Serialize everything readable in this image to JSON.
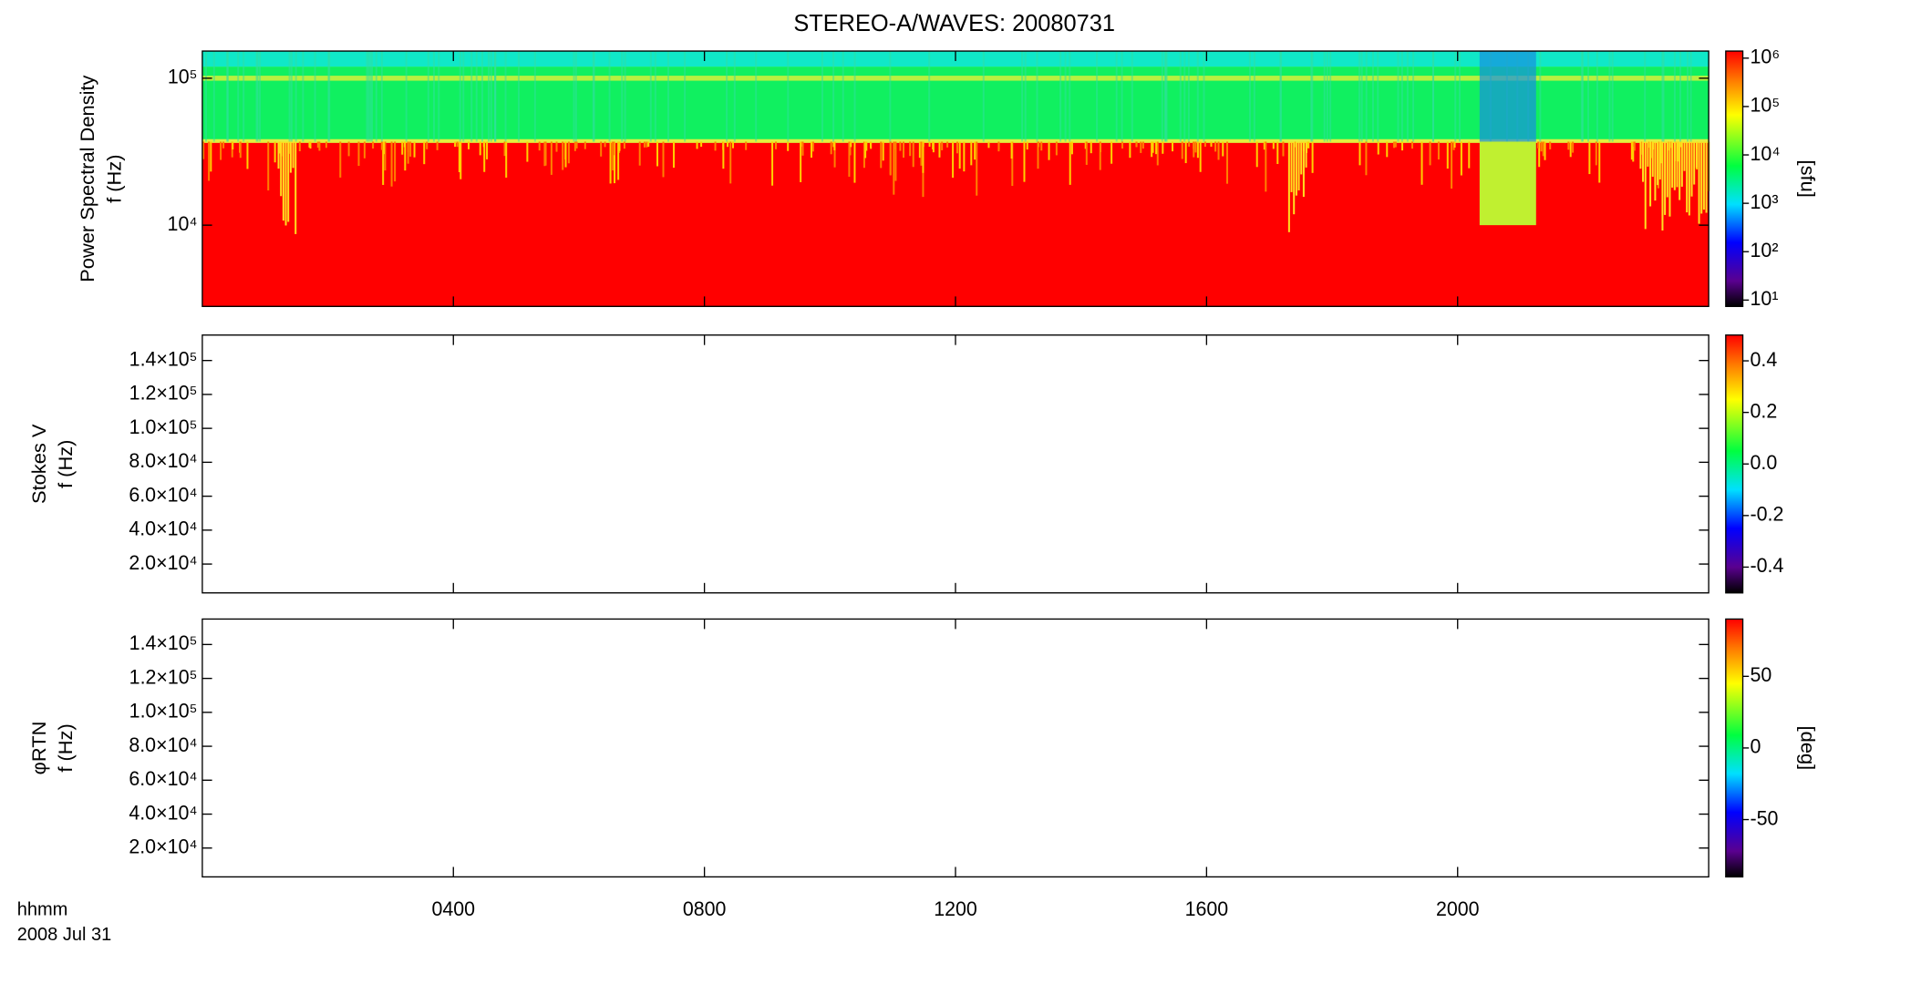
{
  "title": "STEREO-A/WAVES: 20080731",
  "x_unit_label": "hhmm",
  "date_label": "2008 Jul 31",
  "xlim": [
    0,
    24
  ],
  "xticks": [
    {
      "value": 4,
      "label": "0400"
    },
    {
      "value": 8,
      "label": "0800"
    },
    {
      "value": 12,
      "label": "1200"
    },
    {
      "value": 16,
      "label": "1600"
    },
    {
      "value": 20,
      "label": "2000"
    }
  ],
  "chart_data": [
    {
      "type": "heatmap",
      "ylabel": [
        "Power Spectral Density",
        "f (Hz)"
      ],
      "log": true,
      "ylim": [
        2800,
        153000
      ],
      "yticks": [
        {
          "value": 10000,
          "label": "10⁴"
        },
        {
          "value": 100000,
          "label": "10⁵"
        }
      ],
      "colorbar": {
        "log": true,
        "label": "[sfu]",
        "lim": [
          7.4,
          1400000
        ],
        "ticks": [
          {
            "value": 10,
            "label": "10¹"
          },
          {
            "value": 100,
            "label": "10²"
          },
          {
            "value": 1000,
            "label": "10³"
          },
          {
            "value": 10000,
            "label": "10⁴"
          },
          {
            "value": 100000,
            "label": "10⁵"
          },
          {
            "value": 1000000,
            "label": "10⁶"
          }
        ]
      }
    },
    {
      "type": "heatmap",
      "ylabel": [
        "Stokes V",
        "f (Hz)"
      ],
      "log": false,
      "ylim": [
        3000,
        155000
      ],
      "yticks": [
        {
          "value": 20000,
          "label": "2.0×10⁴"
        },
        {
          "value": 40000,
          "label": "4.0×10⁴"
        },
        {
          "value": 60000,
          "label": "6.0×10⁴"
        },
        {
          "value": 80000,
          "label": "8.0×10⁴"
        },
        {
          "value": 100000,
          "label": "1.0×10⁵"
        },
        {
          "value": 120000,
          "label": "1.2×10⁵"
        },
        {
          "value": 140000,
          "label": "1.4×10⁵"
        }
      ],
      "colorbar": {
        "log": false,
        "lim": [
          -0.5,
          0.5
        ],
        "ticks": [
          -0.4,
          -0.2,
          {
            "value": 0,
            "label": "0.0"
          },
          0.2,
          0.4
        ]
      }
    },
    {
      "type": "heatmap",
      "ylabel": [
        "φRTN",
        "f (Hz)"
      ],
      "log": false,
      "ylim": [
        3000,
        155000
      ],
      "yticks": [
        {
          "value": 20000,
          "label": "2.0×10⁴"
        },
        {
          "value": 40000,
          "label": "4.0×10⁴"
        },
        {
          "value": 60000,
          "label": "6.0×10⁴"
        },
        {
          "value": 80000,
          "label": "8.0×10⁴"
        },
        {
          "value": 100000,
          "label": "1.0×10⁵"
        },
        {
          "value": 120000,
          "label": "1.2×10⁵"
        },
        {
          "value": 140000,
          "label": "1.4×10⁵"
        }
      ],
      "colorbar": {
        "log": false,
        "label": "[deg]",
        "lim": [
          -90,
          90
        ],
        "ticks": [
          -50,
          0,
          50
        ]
      }
    }
  ]
}
